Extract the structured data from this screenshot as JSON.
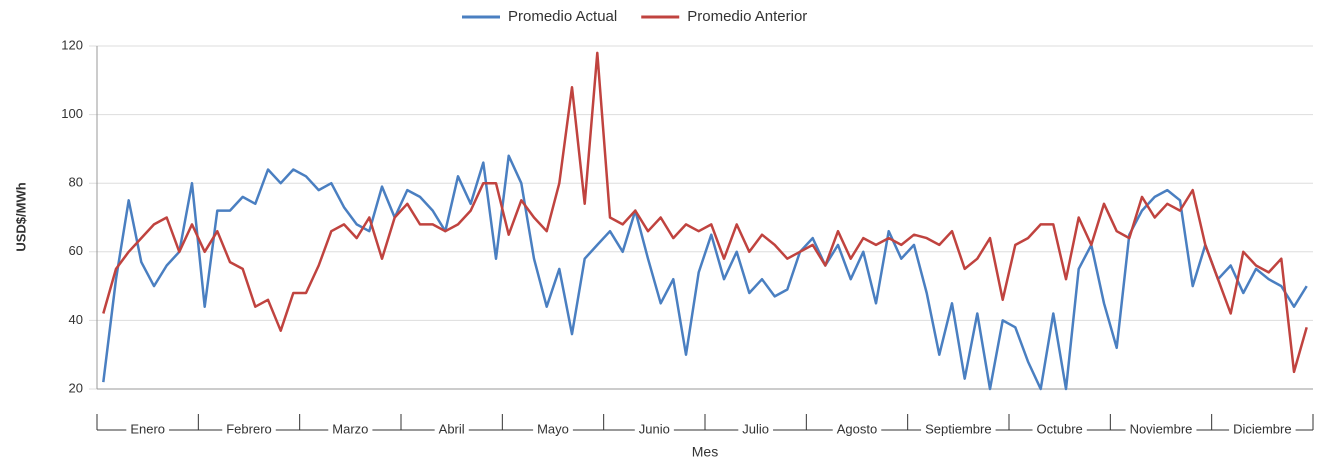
{
  "chart_data": {
    "type": "line",
    "y_title": "USD$/MWh",
    "x_title": "Mes",
    "months": [
      "Enero",
      "Febrero",
      "Marzo",
      "Abril",
      "Mayo",
      "Junio",
      "Julio",
      "Agosto",
      "Septiembre",
      "Octubre",
      "Noviembre",
      "Diciembre"
    ],
    "ylim": [
      20,
      120
    ],
    "yticks": [
      20,
      40,
      60,
      80,
      100,
      120
    ],
    "grid": true,
    "legend": "top",
    "series": [
      {
        "name": "Promedio Actual",
        "color": "#4a7fc1",
        "values": [
          22,
          52,
          75,
          57,
          50,
          56,
          60,
          80,
          44,
          72,
          72,
          76,
          74,
          84,
          80,
          84,
          82,
          78,
          80,
          73,
          68,
          66,
          79,
          70,
          78,
          76,
          72,
          66,
          82,
          74,
          86,
          58,
          88,
          80,
          58,
          44,
          55,
          36,
          58,
          62,
          66,
          60,
          72,
          58,
          45,
          52,
          30,
          54,
          65,
          52,
          60,
          48,
          52,
          47,
          49,
          60,
          64,
          56,
          62,
          52,
          60,
          45,
          66,
          58,
          62,
          48,
          30,
          45,
          23,
          42,
          20,
          40,
          38,
          28,
          20,
          42,
          20,
          55,
          62,
          45,
          32,
          65,
          72,
          76,
          78,
          75,
          50,
          62,
          52,
          56,
          48,
          55,
          52,
          50,
          44,
          50
        ]
      },
      {
        "name": "Promedio Anterior",
        "color": "#c0433f",
        "values": [
          42,
          55,
          60,
          64,
          68,
          70,
          60,
          68,
          60,
          66,
          57,
          55,
          44,
          46,
          37,
          48,
          48,
          56,
          66,
          68,
          64,
          70,
          58,
          70,
          74,
          68,
          68,
          66,
          68,
          72,
          80,
          80,
          65,
          75,
          70,
          66,
          80,
          108,
          74,
          118,
          70,
          68,
          72,
          66,
          70,
          64,
          68,
          66,
          68,
          58,
          68,
          60,
          65,
          62,
          58,
          60,
          62,
          56,
          66,
          58,
          64,
          62,
          64,
          62,
          65,
          64,
          62,
          66,
          55,
          58,
          64,
          46,
          62,
          64,
          68,
          68,
          52,
          70,
          62,
          74,
          66,
          64,
          76,
          70,
          74,
          72,
          78,
          62,
          52,
          42,
          60,
          56,
          54,
          58,
          25,
          38
        ]
      }
    ]
  }
}
